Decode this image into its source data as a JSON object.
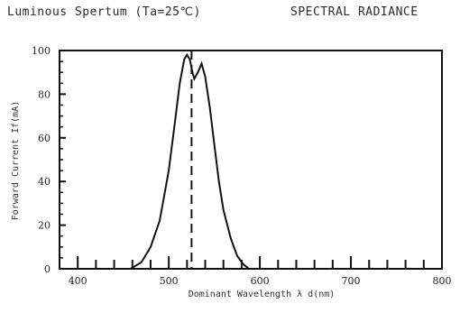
{
  "header": {
    "left_title": "Luminous Spertum (Ta=25℃)",
    "right_title": "SPECTRAL RADIANCE"
  },
  "chart_data": {
    "type": "line",
    "xlabel": "Dominant Wavelength  λ d(nm)",
    "ylabel": "Forward Current If(mA)",
    "xlim": [
      380,
      800
    ],
    "ylim": [
      0,
      100
    ],
    "x_ticks": [
      400,
      500,
      600,
      700,
      800
    ],
    "y_ticks": [
      0,
      20,
      40,
      60,
      80,
      100
    ],
    "grid": false,
    "series": [
      {
        "points": [
          [
            458,
            0
          ],
          [
            470,
            3
          ],
          [
            480,
            10
          ],
          [
            490,
            22
          ],
          [
            500,
            45
          ],
          [
            507,
            68
          ],
          [
            512,
            85
          ],
          [
            517,
            96
          ],
          [
            520,
            98
          ],
          [
            523,
            96
          ],
          [
            526,
            90
          ],
          [
            528,
            87
          ],
          [
            532,
            90
          ],
          [
            536,
            94
          ],
          [
            540,
            88
          ],
          [
            545,
            74
          ],
          [
            550,
            57
          ],
          [
            555,
            40
          ],
          [
            560,
            27
          ],
          [
            568,
            14
          ],
          [
            575,
            6
          ],
          [
            582,
            2
          ],
          [
            588,
            0
          ]
        ]
      }
    ],
    "peak_marker_x": 525
  }
}
